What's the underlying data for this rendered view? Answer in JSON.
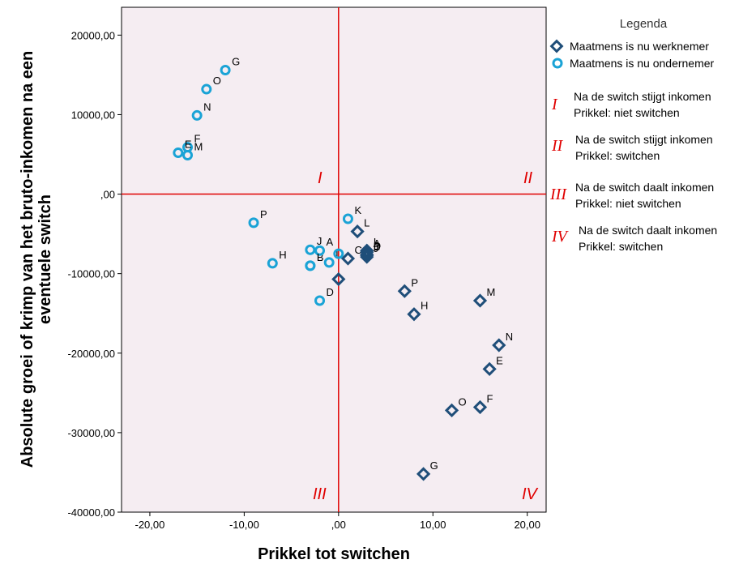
{
  "chart_data": {
    "type": "scatter",
    "xlabel": "Prikkel tot switchen",
    "ylabel_lines": [
      "Absolute groei of krimp van het bruto-inkomen na een",
      "eventuele switch"
    ],
    "xlim": [
      -23,
      22
    ],
    "ylim": [
      -40000,
      23500
    ],
    "xticks": [
      -20,
      -10,
      0,
      10,
      20
    ],
    "xtick_labels": [
      "-20,00",
      "-10,00",
      ",00",
      "10,00",
      "20,00"
    ],
    "yticks": [
      20000,
      10000,
      0,
      -10000,
      -20000,
      -30000,
      -40000
    ],
    "ytick_labels": [
      "20000,00",
      "10000,00",
      ",00",
      "-10000,00",
      "-20000,00",
      "-30000,00",
      "-40000,00"
    ],
    "grid": false,
    "reference_lines": {
      "x": 0,
      "y": 0,
      "color": "#e00000"
    },
    "legend_title": "Legenda",
    "series": [
      {
        "name": "Maatmens is nu werknemer",
        "marker": "diamond",
        "color": "#1f4e79",
        "points": [
          {
            "label": "L",
            "x": 2,
            "y": -4700
          },
          {
            "label": "I",
            "x": 3,
            "y": -7100
          },
          {
            "label": "D",
            "x": 3,
            "y": -7600
          },
          {
            "label": "C",
            "x": 1,
            "y": -8100
          },
          {
            "label": "J",
            "x": 3,
            "y": -7900
          },
          {
            "label": "B",
            "x": 3,
            "y": -7700
          },
          {
            "label": "A",
            "x": 3,
            "y": -7300
          },
          {
            "label": "",
            "x": 0,
            "y": -10700
          },
          {
            "label": "P",
            "x": 7,
            "y": -12200
          },
          {
            "label": "H",
            "x": 8,
            "y": -15100
          },
          {
            "label": "M",
            "x": 15,
            "y": -13400
          },
          {
            "label": "N",
            "x": 17,
            "y": -19000
          },
          {
            "label": "E",
            "x": 16,
            "y": -22000
          },
          {
            "label": "F",
            "x": 15,
            "y": -26800
          },
          {
            "label": "O",
            "x": 12,
            "y": -27200
          },
          {
            "label": "G",
            "x": 9,
            "y": -35200
          }
        ]
      },
      {
        "name": "Maatmens is nu ondernemer",
        "marker": "circle",
        "color": "#1aa3d6",
        "points": [
          {
            "label": "G",
            "x": -12,
            "y": 15600
          },
          {
            "label": "O",
            "x": -14,
            "y": 13200
          },
          {
            "label": "N",
            "x": -15,
            "y": 9900
          },
          {
            "label": "F",
            "x": -16,
            "y": 5900
          },
          {
            "label": "E",
            "x": -17,
            "y": 5200
          },
          {
            "label": "M",
            "x": -16,
            "y": 4900
          },
          {
            "label": "K",
            "x": 1,
            "y": -3100
          },
          {
            "label": "P",
            "x": -9,
            "y": -3600
          },
          {
            "label": "H",
            "x": -7,
            "y": -8700
          },
          {
            "label": "B",
            "x": -3,
            "y": -9000
          },
          {
            "label": "J",
            "x": -3,
            "y": -7000
          },
          {
            "label": "A",
            "x": -2,
            "y": -7100
          },
          {
            "label": "I",
            "x": -1,
            "y": -8600
          },
          {
            "label": "",
            "x": 0,
            "y": -7500
          },
          {
            "label": "L",
            "x": -3,
            "y": -9000
          },
          {
            "label": "D",
            "x": -2,
            "y": -13400
          }
        ]
      }
    ],
    "quadrants": [
      {
        "numeral": "I",
        "line1": "Na de switch stijgt inkomen",
        "line2": "Prikkel: niet switchen"
      },
      {
        "numeral": "II",
        "line1": "Na de switch stijgt inkomen",
        "line2": "Prikkel: switchen"
      },
      {
        "numeral": "III",
        "line1": "Na de switch daalt inkomen",
        "line2": "Prikkel: niet switchen"
      },
      {
        "numeral": "IV",
        "line1": "Na de switch daalt inkomen",
        "line2": "Prikkel: switchen"
      }
    ]
  }
}
